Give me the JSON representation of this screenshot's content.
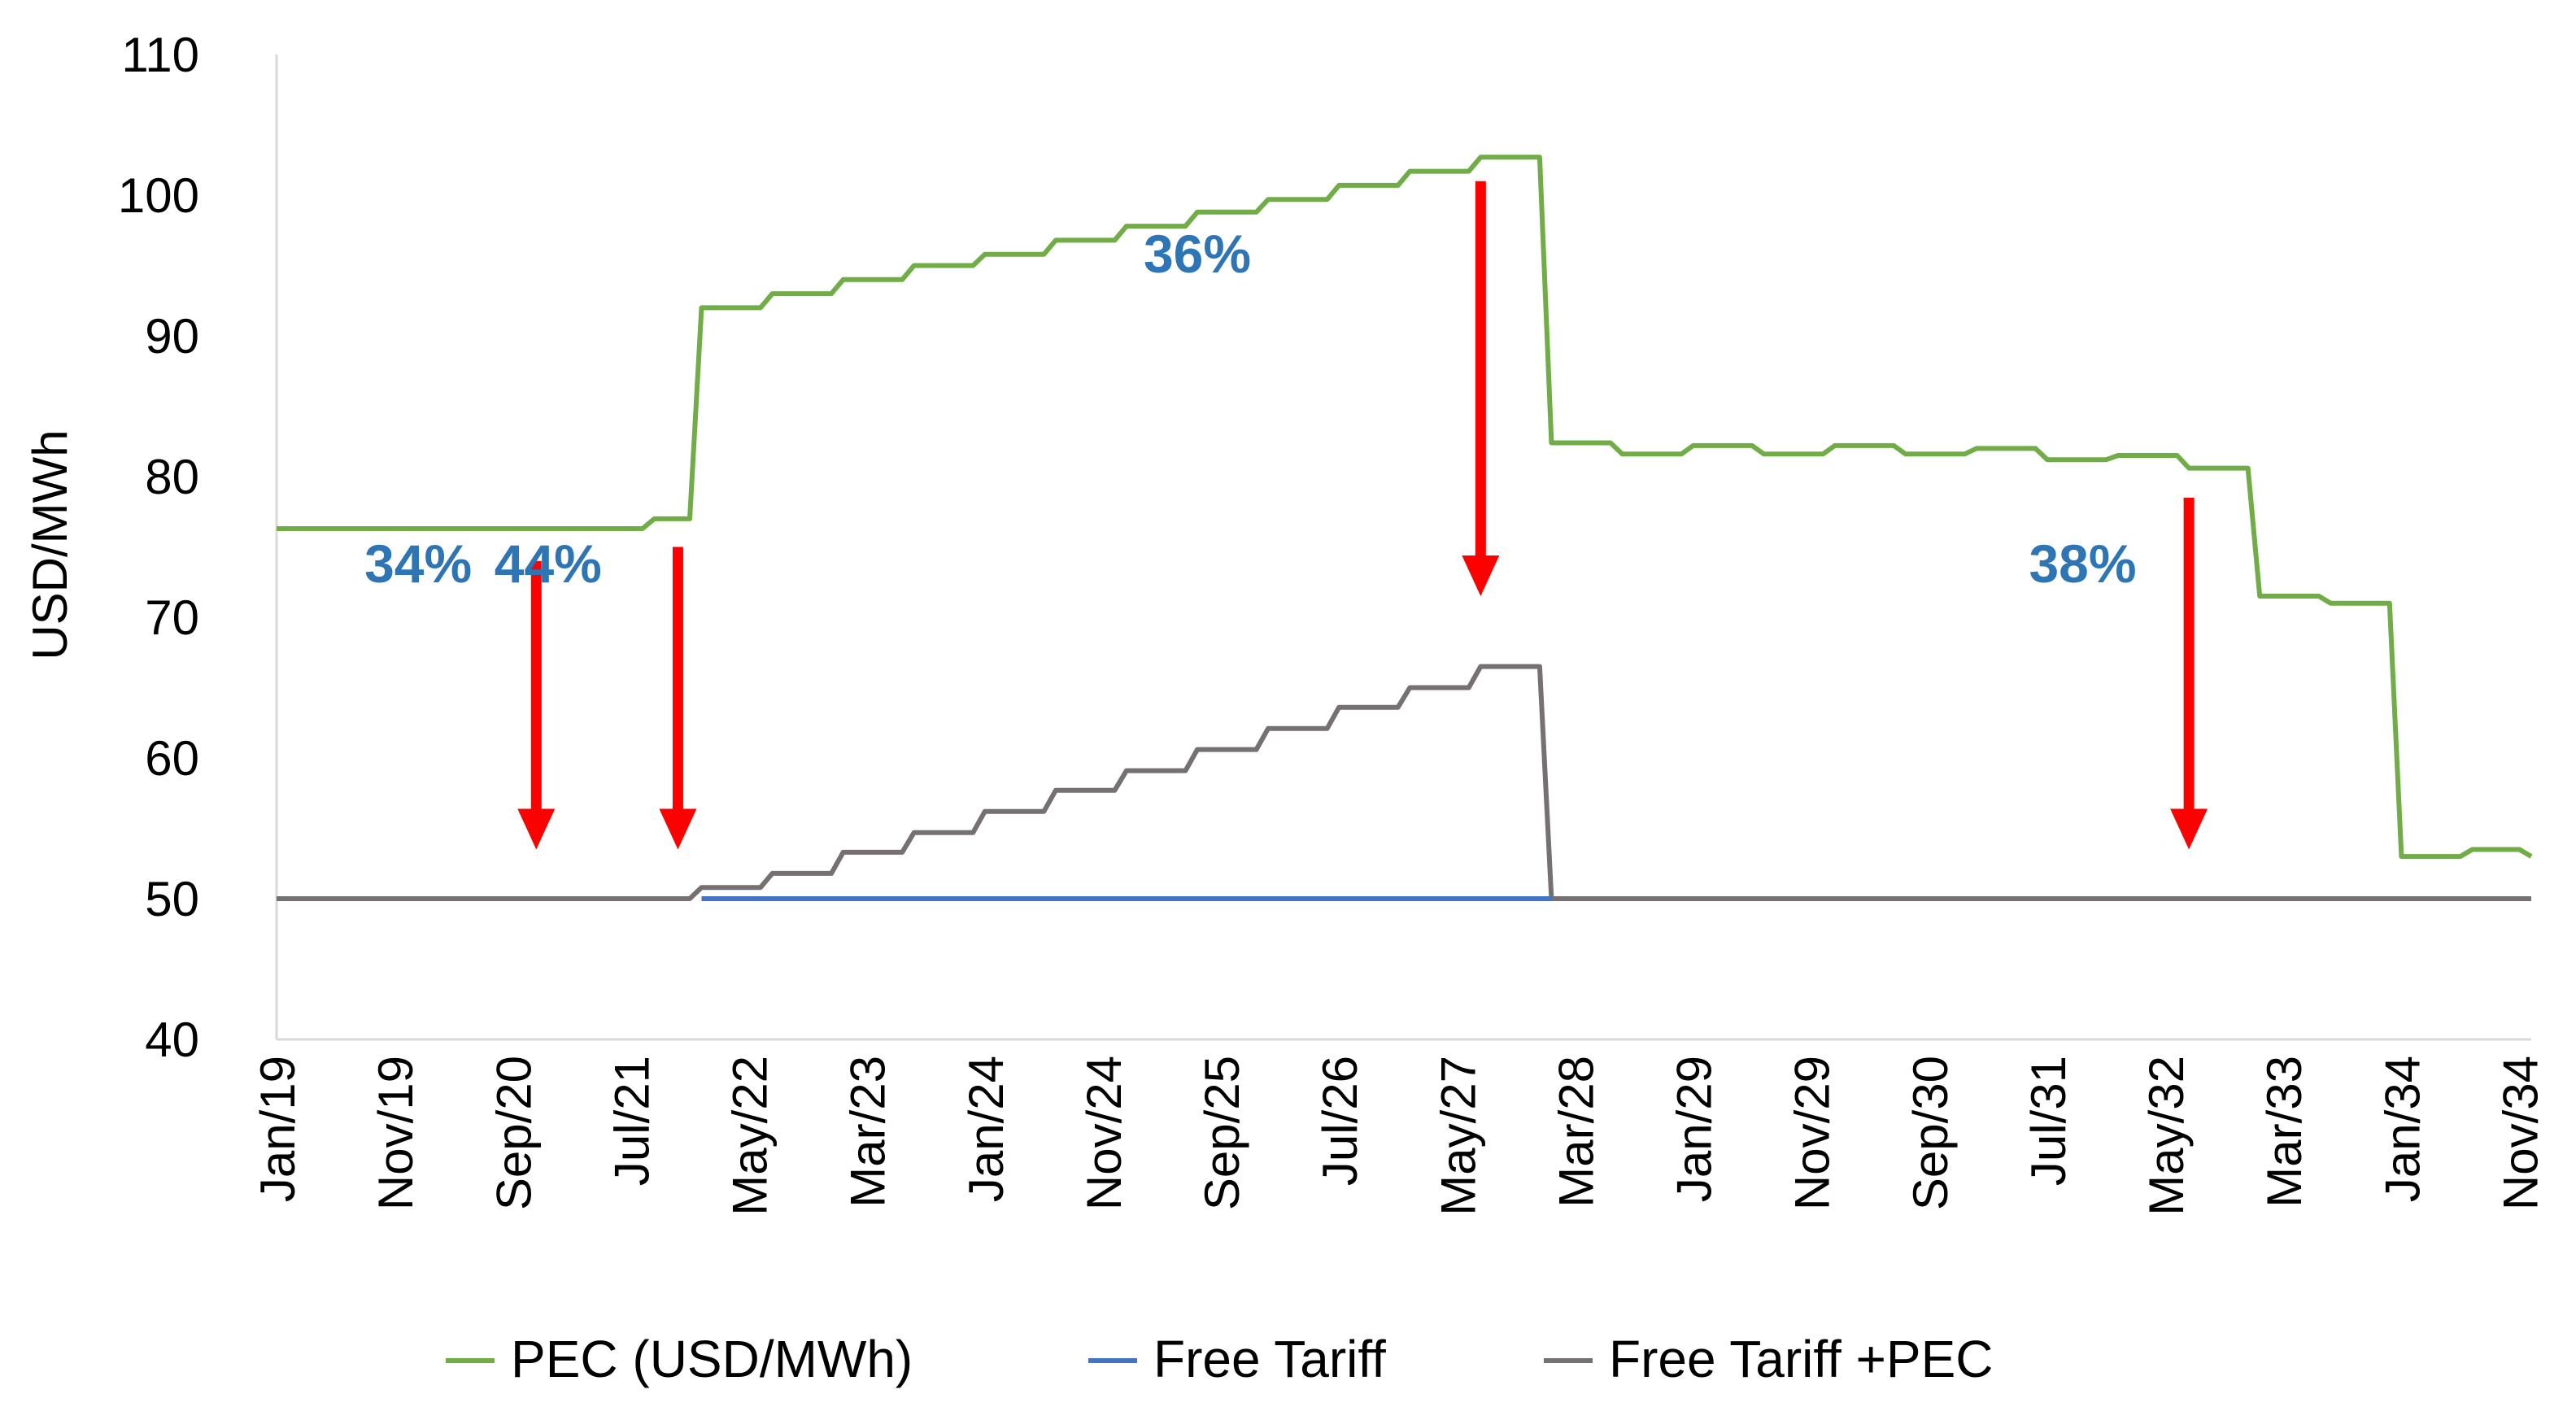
{
  "chart_data": {
    "type": "line",
    "title": "",
    "xlabel": "",
    "ylabel": "USD/MWh",
    "ylim": [
      40,
      110
    ],
    "yticks": [
      40,
      50,
      60,
      70,
      80,
      90,
      100,
      110
    ],
    "grid": false,
    "legend_position": "bottom",
    "x_range": [
      "Jan/19",
      "Dec/34"
    ],
    "x_tick_labels": [
      "Jan/19",
      "Nov/19",
      "Sep/20",
      "Jul/21",
      "May/22",
      "Mar/23",
      "Jan/24",
      "Nov/24",
      "Sep/25",
      "Jul/26",
      "May/27",
      "Mar/28",
      "Jan/29",
      "Nov/29",
      "Sep/30",
      "Jul/31",
      "May/32",
      "Mar/33",
      "Jan/34",
      "Nov/34"
    ],
    "series": [
      {
        "name": "PEC (USD/MWh)",
        "color": "#70AD47",
        "points": [
          [
            "Jan/19",
            76.3
          ],
          [
            "Aug/21",
            76.3
          ],
          [
            "Sep/21",
            77.0
          ],
          [
            "Dec/21",
            77.0
          ],
          [
            "Jan/22",
            92.0
          ],
          [
            "Jun/22",
            92.0
          ],
          [
            "Jul/22",
            93.0
          ],
          [
            "Dec/22",
            93.0
          ],
          [
            "Jan/23",
            94.0
          ],
          [
            "Jun/23",
            94.0
          ],
          [
            "Jul/23",
            95.0
          ],
          [
            "Dec/23",
            95.0
          ],
          [
            "Jan/24",
            95.8
          ],
          [
            "Jun/24",
            95.8
          ],
          [
            "Jul/24",
            96.8
          ],
          [
            "Dec/24",
            96.8
          ],
          [
            "Jan/25",
            97.8
          ],
          [
            "Jun/25",
            97.8
          ],
          [
            "Jul/25",
            98.8
          ],
          [
            "Dec/25",
            98.8
          ],
          [
            "Jan/26",
            99.7
          ],
          [
            "Jun/26",
            99.7
          ],
          [
            "Jul/26",
            100.7
          ],
          [
            "Dec/26",
            100.7
          ],
          [
            "Jan/27",
            101.7
          ],
          [
            "Jun/27",
            101.7
          ],
          [
            "Jul/27",
            102.7
          ],
          [
            "Dec/27",
            102.7
          ],
          [
            "Jan/28",
            82.4
          ],
          [
            "Jun/28",
            82.4
          ],
          [
            "Jul/28",
            81.6
          ],
          [
            "Dec/28",
            81.6
          ],
          [
            "Jan/29",
            82.2
          ],
          [
            "Jun/29",
            82.2
          ],
          [
            "Jul/29",
            81.6
          ],
          [
            "Dec/29",
            81.6
          ],
          [
            "Jan/30",
            82.2
          ],
          [
            "Jun/30",
            82.2
          ],
          [
            "Jul/30",
            81.6
          ],
          [
            "Dec/30",
            81.6
          ],
          [
            "Jan/31",
            82.0
          ],
          [
            "Jun/31",
            82.0
          ],
          [
            "Jul/31",
            81.2
          ],
          [
            "Dec/31",
            81.2
          ],
          [
            "Jan/32",
            81.5
          ],
          [
            "Jun/32",
            81.5
          ],
          [
            "Jul/32",
            80.6
          ],
          [
            "Dec/32",
            80.6
          ],
          [
            "Jan/33",
            71.5
          ],
          [
            "Jun/33",
            71.5
          ],
          [
            "Jul/33",
            71.0
          ],
          [
            "Dec/33",
            71.0
          ],
          [
            "Jan/34",
            53.0
          ],
          [
            "Jun/34",
            53.0
          ],
          [
            "Jul/34",
            53.5
          ],
          [
            "Nov/34",
            53.5
          ],
          [
            "Dec/34",
            53.0
          ]
        ]
      },
      {
        "name": "Free Tariff",
        "color": "#4472C4",
        "points": [
          [
            "Jan/22",
            50.0
          ],
          [
            "Jan/28",
            50.0
          ]
        ]
      },
      {
        "name": "Free Tariff +PEC",
        "color": "#767171",
        "points": [
          [
            "Jan/19",
            50.0
          ],
          [
            "Dec/21",
            50.0
          ],
          [
            "Jan/22",
            50.8
          ],
          [
            "Jun/22",
            50.8
          ],
          [
            "Jul/22",
            51.8
          ],
          [
            "Dec/22",
            51.8
          ],
          [
            "Jan/23",
            53.3
          ],
          [
            "Jun/23",
            53.3
          ],
          [
            "Jul/23",
            54.7
          ],
          [
            "Dec/23",
            54.7
          ],
          [
            "Jan/24",
            56.2
          ],
          [
            "Jun/24",
            56.2
          ],
          [
            "Jul/24",
            57.7
          ],
          [
            "Dec/24",
            57.7
          ],
          [
            "Jan/25",
            59.1
          ],
          [
            "Jun/25",
            59.1
          ],
          [
            "Jul/25",
            60.6
          ],
          [
            "Dec/25",
            60.6
          ],
          [
            "Jan/26",
            62.1
          ],
          [
            "Jun/26",
            62.1
          ],
          [
            "Jul/26",
            63.6
          ],
          [
            "Dec/26",
            63.6
          ],
          [
            "Jan/27",
            65.0
          ],
          [
            "Jun/27",
            65.0
          ],
          [
            "Jul/27",
            66.5
          ],
          [
            "Dec/27",
            66.5
          ],
          [
            "Jan/28",
            50.0
          ],
          [
            "Dec/34",
            50.0
          ]
        ]
      }
    ],
    "annotations": [
      {
        "text": "34%",
        "label_at": [
          "Jan/20",
          72.5
        ],
        "arrow_at": "Nov/20",
        "arrow_from": 74,
        "arrow_to": 53.5
      },
      {
        "text": "44%",
        "label_at": [
          "Dec/20",
          72.5
        ],
        "arrow_at": "Nov/21",
        "arrow_from": 75,
        "arrow_to": 53.5
      },
      {
        "text": "36%",
        "label_at": [
          "Jul/25",
          94.5
        ],
        "arrow_at": "Jul/27",
        "arrow_from": 101,
        "arrow_to": 71.5
      },
      {
        "text": "38%",
        "label_at": [
          "Oct/31",
          72.5
        ],
        "arrow_at": "Jul/32",
        "arrow_from": 78.5,
        "arrow_to": 53.5
      }
    ],
    "annotation_arrow_color": "#FF0000"
  }
}
